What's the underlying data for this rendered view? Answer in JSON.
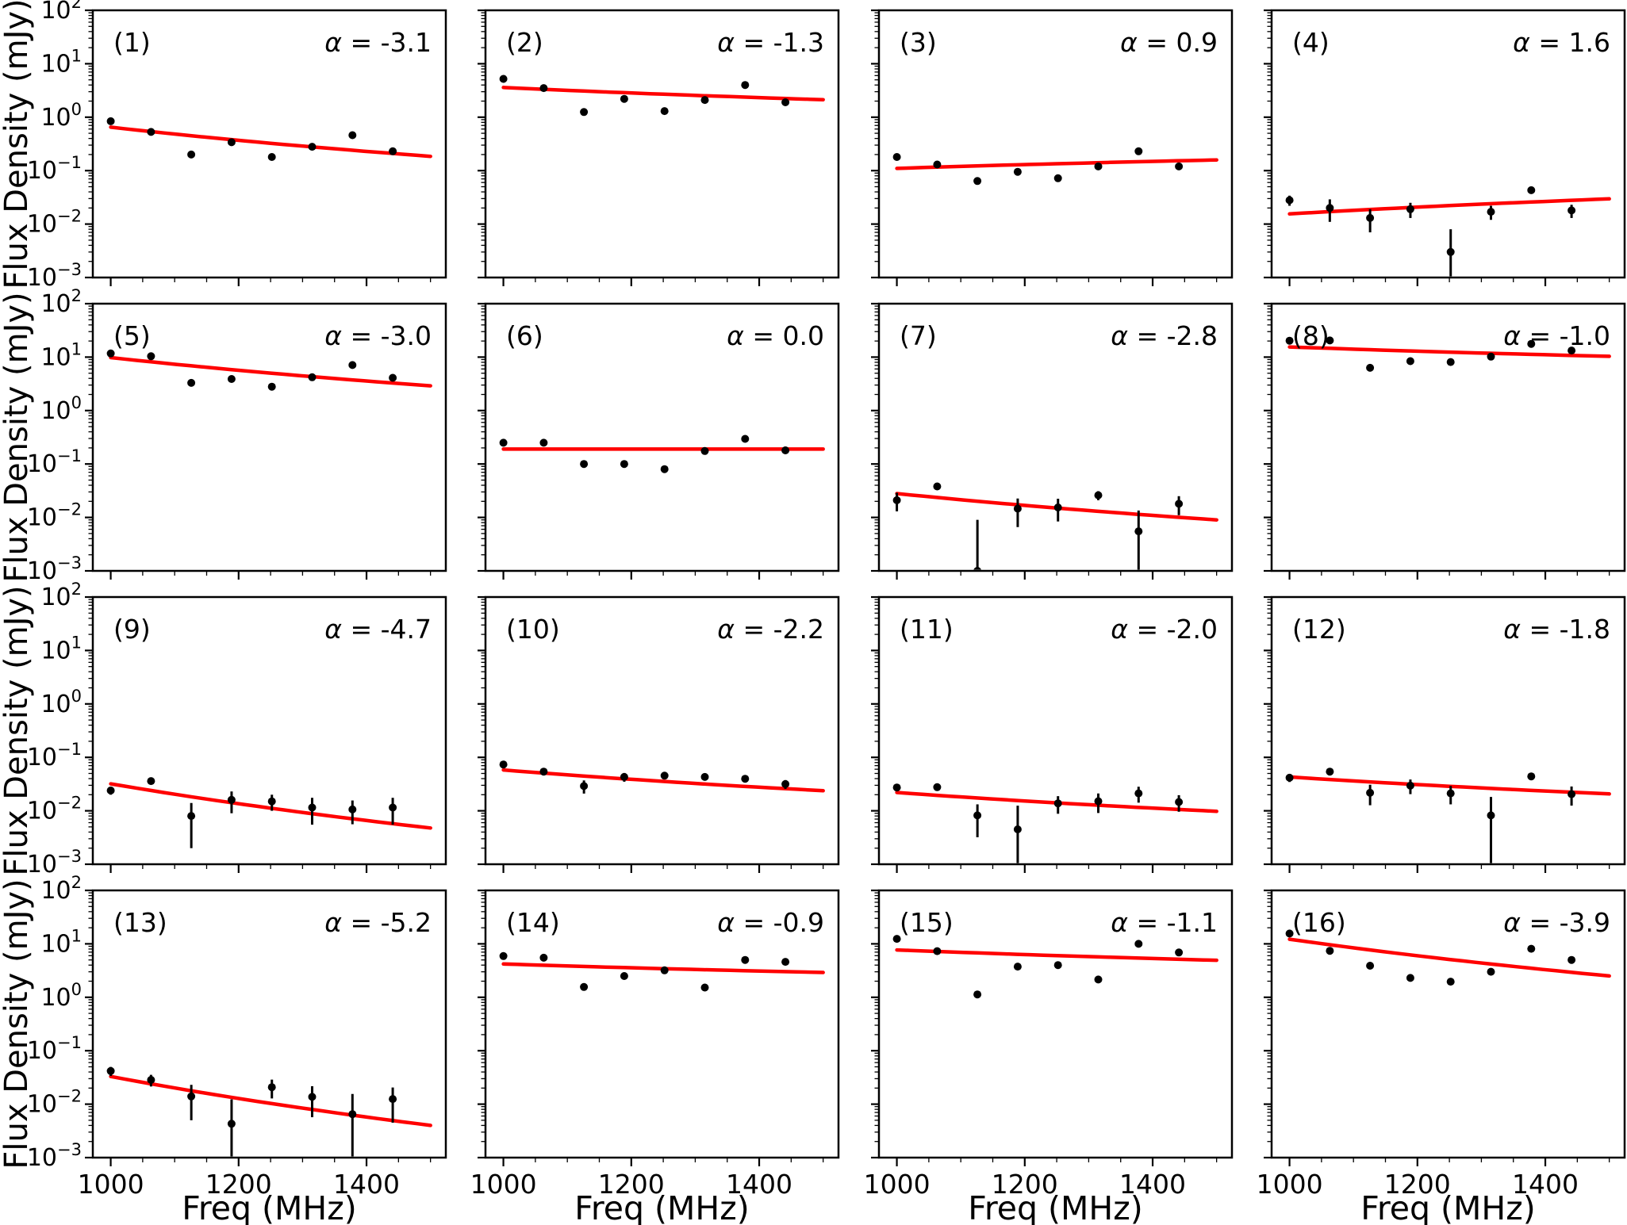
{
  "figure": {
    "ylabel": "Flux Density (mJy)",
    "xlabel": "Freq (MHz)",
    "alpha_symbol": "α",
    "y_tick_base": "10",
    "y_tick_exponents": [
      "2",
      "1",
      "0",
      "−1",
      "−2",
      "−3"
    ],
    "x_tick_labels": [
      "1000",
      "1200",
      "1400"
    ],
    "background_color": "#ffffff",
    "fit_color": "#ff0000",
    "marker_color": "#000000",
    "frame_color": "#000000"
  },
  "chart_data": {
    "type": "scatter",
    "grid": false,
    "x_axis_label": "Freq (MHz)",
    "y_axis_label": "Flux Density (mJy)",
    "x_ticks": [
      1000,
      1200,
      1400
    ],
    "x_minor_step": 50,
    "xlim": [
      972,
      1524
    ],
    "ylim": [
      0.001,
      100
    ],
    "y_scale": "log",
    "fit_model": "S = S1000 * (freq/1000)^alpha",
    "fit_range": [
      1000,
      1500
    ],
    "frequencies": [
      1000,
      1063,
      1126,
      1189,
      1252,
      1315,
      1378,
      1441
    ],
    "panels": [
      {
        "label": "(1)",
        "alpha": -3.1,
        "alpha_eq": " = -3.1",
        "s1000": 0.65,
        "flux": [
          0.84,
          0.53,
          0.2,
          0.34,
          0.18,
          0.28,
          0.46,
          0.23
        ],
        "flux_err": [
          0,
          0,
          0,
          0,
          0,
          0,
          0,
          0
        ]
      },
      {
        "label": "(2)",
        "alpha": -1.3,
        "alpha_eq": " = -1.3",
        "s1000": 3.6,
        "flux": [
          5.2,
          3.5,
          1.25,
          2.2,
          1.3,
          2.1,
          4.0,
          1.9
        ],
        "flux_err": [
          0,
          0,
          0,
          0,
          0,
          0,
          0,
          0
        ]
      },
      {
        "label": "(3)",
        "alpha": 0.9,
        "alpha_eq": " = 0.9",
        "s1000": 0.11,
        "flux": [
          0.18,
          0.13,
          0.064,
          0.095,
          0.072,
          0.12,
          0.23,
          0.12
        ],
        "flux_err": [
          0,
          0,
          0,
          0,
          0,
          0,
          0,
          0
        ]
      },
      {
        "label": "(4)",
        "alpha": 1.6,
        "alpha_eq": " = 1.6",
        "s1000": 0.0155,
        "flux": [
          0.028,
          0.02,
          0.013,
          0.019,
          0.003,
          0.017,
          0.043,
          0.018
        ],
        "flux_err": [
          0.006,
          0.009,
          0.006,
          0.006,
          0.005,
          0.005,
          0,
          0.005
        ]
      },
      {
        "label": "(5)",
        "alpha": -3.0,
        "alpha_eq": " = -3.0",
        "s1000": 9.8,
        "flux": [
          11.7,
          10.4,
          3.3,
          3.9,
          2.8,
          4.2,
          7.1,
          4.1
        ],
        "flux_err": [
          0,
          0,
          0,
          0,
          0,
          0,
          0,
          0
        ]
      },
      {
        "label": "(6)",
        "alpha": 0.0,
        "alpha_eq": " = 0.0",
        "s1000": 0.19,
        "flux": [
          0.25,
          0.25,
          0.1,
          0.1,
          0.08,
          0.175,
          0.295,
          0.18
        ],
        "flux_err": [
          0,
          0,
          0,
          0,
          0,
          0,
          0,
          0
        ]
      },
      {
        "label": "(7)",
        "alpha": -2.8,
        "alpha_eq": " = -2.8",
        "s1000": 0.028,
        "flux": [
          0.021,
          0.038,
          0.001,
          0.0146,
          0.0154,
          0.026,
          0.0055,
          0.018
        ],
        "flux_err": [
          0.008,
          0.005,
          0.008,
          0.008,
          0.007,
          0.005,
          0.008,
          0.007
        ]
      },
      {
        "label": "(8)",
        "alpha": -1.0,
        "alpha_eq": " = -1.0",
        "s1000": 15.5,
        "flux": [
          20.3,
          20.5,
          6.3,
          8.4,
          8.1,
          10.2,
          17.7,
          13.3
        ],
        "flux_err": [
          0,
          0,
          0,
          0,
          0,
          0,
          0,
          0
        ]
      },
      {
        "label": "(9)",
        "alpha": -4.7,
        "alpha_eq": " = -4.7",
        "s1000": 0.032,
        "flux": [
          0.024,
          0.036,
          0.008,
          0.016,
          0.015,
          0.0115,
          0.0106,
          0.0115
        ],
        "flux_err": [
          0.004,
          0.004,
          0.006,
          0.007,
          0.005,
          0.006,
          0.005,
          0.006
        ]
      },
      {
        "label": "(10)",
        "alpha": -2.2,
        "alpha_eq": " = -2.2",
        "s1000": 0.058,
        "flux": [
          0.0735,
          0.054,
          0.029,
          0.043,
          0.0455,
          0.043,
          0.0397,
          0.0316
        ],
        "flux_err": [
          0,
          0,
          0.008,
          0.008,
          0,
          0,
          0.005,
          0.006
        ]
      },
      {
        "label": "(11)",
        "alpha": -2.0,
        "alpha_eq": " = -2.0",
        "s1000": 0.022,
        "flux": [
          0.0273,
          0.0277,
          0.0082,
          0.0045,
          0.0138,
          0.0151,
          0.0212,
          0.0146
        ],
        "flux_err": [
          0.004,
          0.003,
          0.005,
          0.008,
          0.005,
          0.006,
          0.007,
          0.005
        ]
      },
      {
        "label": "(12)",
        "alpha": -1.8,
        "alpha_eq": " = -1.8",
        "s1000": 0.043,
        "flux": [
          0.0416,
          0.054,
          0.0217,
          0.0295,
          0.0212,
          0.0082,
          0.044,
          0.0205
        ],
        "flux_err": [
          0.007,
          0.004,
          0.009,
          0.009,
          0.008,
          0.01,
          0.005,
          0.008
        ]
      },
      {
        "label": "(13)",
        "alpha": -5.2,
        "alpha_eq": " = -5.2",
        "s1000": 0.033,
        "flux": [
          0.0417,
          0.0284,
          0.014,
          0.0043,
          0.0208,
          0.0137,
          0.0065,
          0.0125
        ],
        "flux_err": [
          0.008,
          0.007,
          0.009,
          0.008,
          0.008,
          0.008,
          0.009,
          0.008
        ]
      },
      {
        "label": "(14)",
        "alpha": -0.9,
        "alpha_eq": " = -0.9",
        "s1000": 4.2,
        "flux": [
          5.9,
          5.5,
          1.56,
          2.5,
          3.2,
          1.52,
          5.0,
          4.6
        ],
        "flux_err": [
          0,
          0,
          0,
          0,
          0,
          0,
          0,
          0
        ]
      },
      {
        "label": "(15)",
        "alpha": -1.1,
        "alpha_eq": " = -1.1",
        "s1000": 7.7,
        "flux": [
          12.4,
          7.3,
          1.13,
          3.75,
          4.0,
          2.15,
          10.0,
          6.9
        ],
        "flux_err": [
          0,
          0,
          0,
          0,
          0,
          0,
          0,
          0
        ]
      },
      {
        "label": "(16)",
        "alpha": -3.9,
        "alpha_eq": " = -3.9",
        "s1000": 12.2,
        "flux": [
          15.6,
          7.4,
          3.9,
          2.3,
          1.96,
          3.0,
          8.1,
          5.0
        ],
        "flux_err": [
          0,
          0,
          0,
          0,
          0,
          0,
          0,
          0
        ]
      }
    ]
  }
}
